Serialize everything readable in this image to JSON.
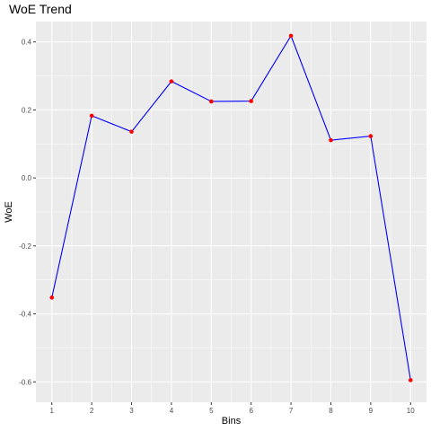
{
  "chart_data": {
    "type": "line",
    "title": "WoE Trend",
    "xlabel": "Bins",
    "ylabel": "WoE",
    "x": [
      1,
      2,
      3,
      4,
      5,
      6,
      7,
      8,
      9,
      10
    ],
    "series": [
      {
        "values": [
          -0.352,
          0.183,
          0.136,
          0.284,
          0.225,
          0.226,
          0.418,
          0.111,
          0.123,
          -0.595
        ]
      }
    ],
    "xlim": [
      0.6,
      10.4
    ],
    "ylim": [
      -0.66,
      0.46
    ],
    "yticks": [
      0.4,
      0.2,
      0.0,
      -0.2,
      -0.4,
      -0.6
    ],
    "ytick_labels": [
      "0.4",
      "0.2",
      "0.0",
      "-0.2",
      "-0.4",
      "-0.6"
    ],
    "xticks": [
      1,
      2,
      3,
      4,
      5,
      6,
      7,
      8,
      9,
      10
    ],
    "xtick_labels": [
      "1",
      "2",
      "3",
      "4",
      "5",
      "6",
      "7",
      "8",
      "9",
      "10"
    ],
    "grid": true,
    "line_color": "#0000ff",
    "point_color": "#ff0000",
    "panel_background": "#ebebeb",
    "grid_color": "#ffffff"
  }
}
